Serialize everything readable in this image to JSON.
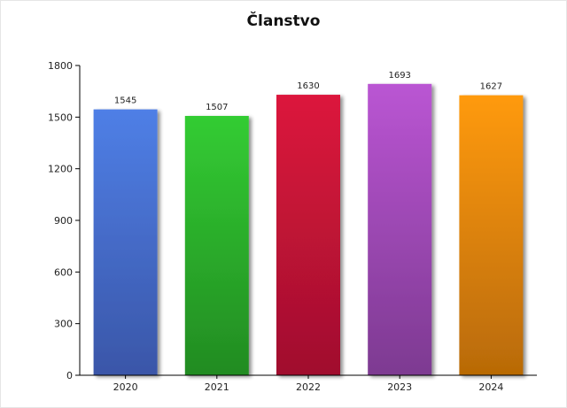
{
  "chart_data": {
    "type": "bar",
    "title": "Članstvo",
    "xlabel": "",
    "ylabel": "",
    "categories": [
      "2020",
      "2021",
      "2022",
      "2023",
      "2024"
    ],
    "values": [
      1545,
      1507,
      1630,
      1693,
      1627
    ],
    "data_labels": [
      "1545",
      "1507",
      "1630",
      "1693",
      "1627"
    ],
    "ylim": [
      0,
      1800
    ],
    "yticks": [
      0,
      300,
      600,
      900,
      1200,
      1500,
      1800
    ],
    "ytick_labels": [
      "0",
      "300",
      "600",
      "900",
      "1200",
      "1500",
      "1800"
    ],
    "grid": false,
    "legend": "none",
    "bar_colors": [
      {
        "top": "#4f7fe6",
        "bottom": "#3a56a8"
      },
      {
        "top": "#33cc33",
        "bottom": "#228b22"
      },
      {
        "top": "#dc143c",
        "bottom": "#a0102e"
      },
      {
        "top": "#ba55d3",
        "bottom": "#7d3a91"
      },
      {
        "top": "#ff9a10",
        "bottom": "#b86a06"
      }
    ],
    "axis_color": "#000000"
  }
}
